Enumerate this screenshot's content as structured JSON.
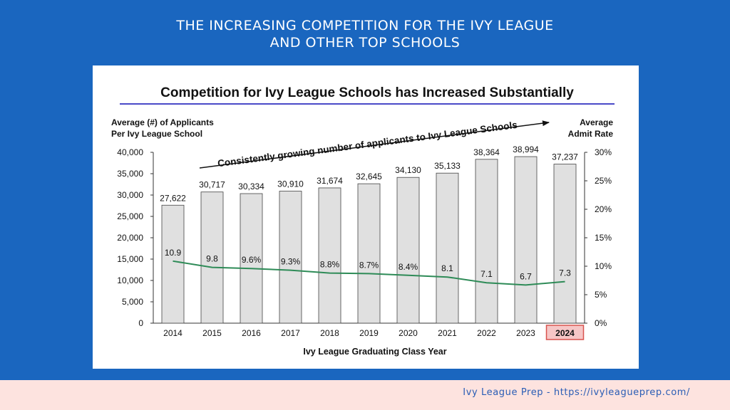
{
  "slide": {
    "title_line1": "THE INCREASING COMPETITION FOR THE IVY LEAGUE",
    "title_line2": "AND OTHER TOP SCHOOLS",
    "footer": "Ivy League Prep - https://ivyleagueprep.com/"
  },
  "colors": {
    "background": "#1a66bf",
    "bar_fill": "#e0e0e0",
    "bar_stroke": "#444444",
    "line": "#2e8b57",
    "highlight_fill": "#f6c6c6",
    "highlight_stroke": "#d9534f",
    "title_underline": "#4a4ac8",
    "footer_bg": "#fde3df"
  },
  "chart_data": {
    "type": "bar",
    "title": "Competition for Ivy League Schools has Increased Substantially",
    "annotation": "Consistently growing number of applicants to Ivy League Schools",
    "ylabel_left": [
      "Average (#) of Applicants",
      "Per Ivy League School"
    ],
    "ylabel_right": [
      "Average",
      "Admit Rate"
    ],
    "xlabel": "Ivy League Graduating Class Year",
    "categories": [
      "2014",
      "2015",
      "2016",
      "2017",
      "2018",
      "2019",
      "2020",
      "2021",
      "2022",
      "2023",
      "2024"
    ],
    "highlight_category": "2024",
    "series": [
      {
        "type": "bar",
        "axis": "left",
        "values": [
          27622,
          30717,
          30334,
          30910,
          31674,
          32645,
          34130,
          35133,
          38364,
          38994,
          37237
        ],
        "labels": [
          "27,622",
          "30,717",
          "30,334",
          "30,910",
          "31,674",
          "32,645",
          "34,130",
          "35,133",
          "38,364",
          "38,994",
          "37,237"
        ]
      },
      {
        "type": "line",
        "axis": "right",
        "values": [
          10.9,
          9.8,
          9.6,
          9.3,
          8.8,
          8.7,
          8.4,
          8.1,
          7.1,
          6.7,
          7.3
        ],
        "labels": [
          "10.9",
          "9.8",
          "9.6%",
          "9.3%",
          "8.8%",
          "8.7%",
          "8.4%",
          "8.1",
          "7.1",
          "6.7",
          "7.3"
        ]
      }
    ],
    "ylim_left": [
      0,
      40000
    ],
    "yticks_left": [
      "0",
      "5,000",
      "10,000",
      "15,000",
      "20,000",
      "25,000",
      "30,000",
      "35,000",
      "40,000"
    ],
    "ylim_right": [
      0,
      30
    ],
    "yticks_right": [
      "0%",
      "5%",
      "10%",
      "15%",
      "20%",
      "25%",
      "30%"
    ],
    "grid": false
  }
}
